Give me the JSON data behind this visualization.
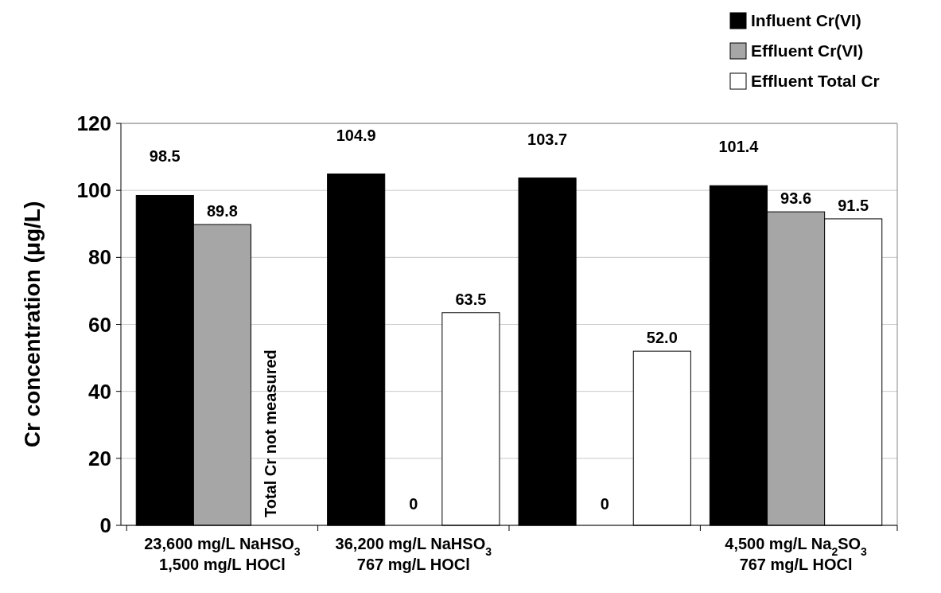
{
  "chart_data": {
    "type": "bar",
    "ylabel": "Cr concentration (μg/L)",
    "categories": [
      "23,600 mg/L NaHSO$_{3}$\n1,500 mg/L HOCl",
      "36,200 mg/L NaHSO$_{3}$\n767 mg/L HOCl",
      null,
      "4,500 mg/L Na$_{2}$SO$_{3}$\n767 mg/L HOCl"
    ],
    "series": [
      {
        "name": "Influent Cr(VI)",
        "color": "#000000",
        "values": [
          98.5,
          104.9,
          103.7,
          101.4
        ],
        "value_labels": [
          "98.5",
          "104.9",
          "103.7",
          "101.4"
        ]
      },
      {
        "name": "Effluent Cr(VI)",
        "color": "#a6a6a6",
        "values": [
          89.8,
          0,
          0,
          93.6
        ],
        "value_labels": [
          "89.8",
          "0",
          "0",
          "93.6"
        ]
      },
      {
        "name": "Effluent Total Cr",
        "color": "#ffffff",
        "values": [
          null,
          63.5,
          52.0,
          91.5
        ],
        "value_labels": [
          null,
          "63.5",
          "52.0",
          "91.5"
        ]
      }
    ],
    "ylim": [
      0,
      120
    ],
    "yticks": [
      0,
      20,
      40,
      60,
      80,
      100,
      120
    ],
    "grid": "y",
    "legend": "top right",
    "annotations": [
      "Total Cr not measured"
    ]
  }
}
